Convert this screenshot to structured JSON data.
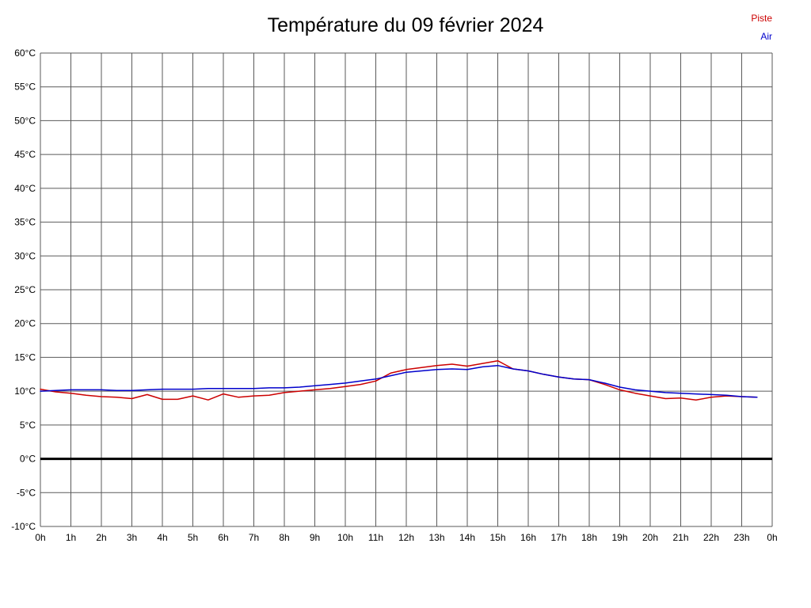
{
  "title": "Température du 09 février 2024",
  "legend": {
    "piste_label": "Piste",
    "air_label": "Air"
  },
  "chart_data": {
    "type": "line",
    "title": "Température du 09 février 2024",
    "xlabel": "",
    "ylabel": "",
    "xlim": [
      0,
      24
    ],
    "ylim": [
      -10,
      60
    ],
    "x_step": 1,
    "y_step": 5,
    "grid": true,
    "grid_color": "#5a5a5a",
    "y_tick_unit": "°C",
    "x_tick_labels": [
      "0h",
      "1h",
      "2h",
      "3h",
      "4h",
      "5h",
      "6h",
      "7h",
      "8h",
      "9h",
      "10h",
      "11h",
      "12h",
      "13h",
      "14h",
      "15h",
      "16h",
      "17h",
      "18h",
      "19h",
      "20h",
      "21h",
      "22h",
      "23h",
      "0h"
    ],
    "zero_line": {
      "value": 0,
      "color": "#000000",
      "width": 3
    },
    "legend_position": "top-right",
    "series": [
      {
        "name": "Piste",
        "color": "#cc0000",
        "points": [
          [
            0,
            10.3
          ],
          [
            0.5,
            9.9
          ],
          [
            1,
            9.7
          ],
          [
            1.5,
            9.4
          ],
          [
            2,
            9.2
          ],
          [
            2.5,
            9.1
          ],
          [
            3,
            8.9
          ],
          [
            3.5,
            9.5
          ],
          [
            4,
            8.8
          ],
          [
            4.5,
            8.8
          ],
          [
            5,
            9.3
          ],
          [
            5.5,
            8.7
          ],
          [
            6,
            9.6
          ],
          [
            6.5,
            9.1
          ],
          [
            7,
            9.3
          ],
          [
            7.5,
            9.4
          ],
          [
            8,
            9.8
          ],
          [
            8.5,
            10.0
          ],
          [
            9,
            10.2
          ],
          [
            9.5,
            10.4
          ],
          [
            10,
            10.7
          ],
          [
            10.5,
            11.0
          ],
          [
            11,
            11.5
          ],
          [
            11.5,
            12.7
          ],
          [
            12,
            13.2
          ],
          [
            12.5,
            13.5
          ],
          [
            13,
            13.8
          ],
          [
            13.5,
            14.0
          ],
          [
            14,
            13.7
          ],
          [
            14.5,
            14.1
          ],
          [
            15,
            14.5
          ],
          [
            15.5,
            13.3
          ],
          [
            16,
            13.0
          ],
          [
            16.5,
            12.5
          ],
          [
            17,
            12.1
          ],
          [
            17.5,
            11.8
          ],
          [
            18,
            11.7
          ],
          [
            18.5,
            11.0
          ],
          [
            19,
            10.2
          ],
          [
            19.5,
            9.7
          ],
          [
            20,
            9.3
          ],
          [
            20.5,
            8.9
          ],
          [
            21,
            9.0
          ],
          [
            21.5,
            8.7
          ],
          [
            22,
            9.1
          ],
          [
            22.5,
            9.3
          ],
          [
            23,
            9.2
          ],
          [
            23.5,
            9.1
          ]
        ]
      },
      {
        "name": "Air",
        "color": "#0000cc",
        "points": [
          [
            0,
            10.0
          ],
          [
            0.5,
            10.1
          ],
          [
            1,
            10.2
          ],
          [
            1.5,
            10.2
          ],
          [
            2,
            10.2
          ],
          [
            2.5,
            10.1
          ],
          [
            3,
            10.1
          ],
          [
            3.5,
            10.2
          ],
          [
            4,
            10.3
          ],
          [
            4.5,
            10.3
          ],
          [
            5,
            10.3
          ],
          [
            5.5,
            10.4
          ],
          [
            6,
            10.4
          ],
          [
            6.5,
            10.4
          ],
          [
            7,
            10.4
          ],
          [
            7.5,
            10.5
          ],
          [
            8,
            10.5
          ],
          [
            8.5,
            10.6
          ],
          [
            9,
            10.8
          ],
          [
            9.5,
            11.0
          ],
          [
            10,
            11.2
          ],
          [
            10.5,
            11.5
          ],
          [
            11,
            11.8
          ],
          [
            11.5,
            12.3
          ],
          [
            12,
            12.8
          ],
          [
            12.5,
            13.0
          ],
          [
            13,
            13.2
          ],
          [
            13.5,
            13.3
          ],
          [
            14,
            13.2
          ],
          [
            14.5,
            13.6
          ],
          [
            15,
            13.8
          ],
          [
            15.5,
            13.3
          ],
          [
            16,
            13.0
          ],
          [
            16.5,
            12.5
          ],
          [
            17,
            12.1
          ],
          [
            17.5,
            11.8
          ],
          [
            18,
            11.7
          ],
          [
            18.5,
            11.2
          ],
          [
            19,
            10.6
          ],
          [
            19.5,
            10.2
          ],
          [
            20,
            10.0
          ],
          [
            20.5,
            9.8
          ],
          [
            21,
            9.7
          ],
          [
            21.5,
            9.6
          ],
          [
            22,
            9.5
          ],
          [
            22.5,
            9.4
          ],
          [
            23,
            9.2
          ],
          [
            23.5,
            9.1
          ]
        ]
      }
    ]
  }
}
